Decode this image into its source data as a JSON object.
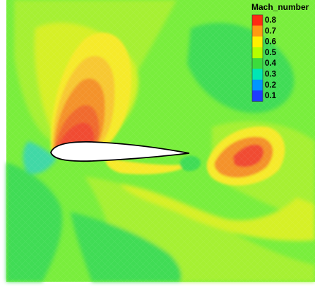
{
  "legend": {
    "title": "Mach_number",
    "levels": [
      "0.8",
      "0.7",
      "0.6",
      "0.5",
      "0.4",
      "0.3",
      "0.2",
      "0.1"
    ],
    "colors": [
      "#ff2a12",
      "#ff9a12",
      "#fff000",
      "#b4ff00",
      "#3cdc3c",
      "#00e6b4",
      "#0096ff",
      "#1e3cff"
    ]
  },
  "field_colors": {
    "background": "#79ee3c",
    "light_green": "#a6f030",
    "yellow_green": "#d6f026",
    "yellow": "#f6ea2a",
    "orange_yellow": "#f7c830",
    "orange": "#f4922c",
    "red_orange": "#f06a2e",
    "red": "#f04b33",
    "green": "#3fdc55",
    "cyan_green": "#3fd8a6",
    "airfoil_fill": "#ffffff",
    "airfoil_outline": "#000000"
  }
}
